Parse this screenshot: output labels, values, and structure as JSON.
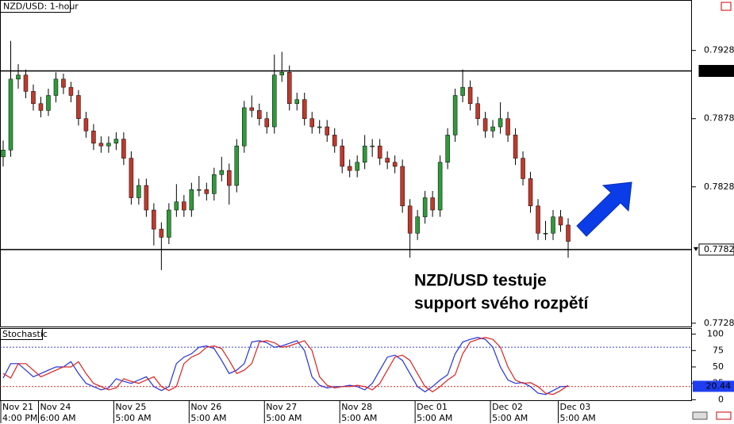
{
  "chart_data": {
    "type": "candlestick",
    "title": "NZD/USD: 1-hour",
    "categories": [
      "Nov 21",
      null,
      null,
      null,
      null,
      "Nov 24",
      null,
      null,
      null,
      null,
      null,
      null,
      null,
      null,
      null,
      "Nov 25",
      null,
      null,
      null,
      null,
      null,
      null,
      null,
      null,
      null,
      "Nov 26",
      null,
      null,
      null,
      null,
      null,
      null,
      null,
      null,
      null,
      "Nov 27",
      null,
      null,
      null,
      null,
      null,
      null,
      null,
      null,
      null,
      "Nov 28",
      null,
      null,
      null,
      null,
      null,
      null,
      null,
      null,
      null,
      "Dec 01",
      null,
      null,
      null,
      null,
      null,
      null,
      null,
      null,
      null,
      "Dec 02",
      null,
      null,
      null,
      null,
      null,
      null,
      null,
      null,
      "Dec 03",
      null
    ],
    "category_times": [
      "4:00 PM",
      null,
      null,
      null,
      null,
      "6:00 AM",
      null,
      null,
      null,
      null,
      null,
      null,
      null,
      null,
      null,
      "5:00 AM",
      null,
      null,
      null,
      null,
      null,
      null,
      null,
      null,
      null,
      "5:00 AM",
      null,
      null,
      null,
      null,
      null,
      null,
      null,
      null,
      null,
      "5:00 AM",
      null,
      null,
      null,
      null,
      null,
      null,
      null,
      null,
      null,
      "5:00 AM",
      null,
      null,
      null,
      null,
      null,
      null,
      null,
      null,
      null,
      "5:00 AM",
      null,
      null,
      null,
      null,
      null,
      null,
      null,
      null,
      null,
      "5:00 AM",
      null,
      null,
      null,
      null,
      null,
      null,
      null,
      null,
      "5:00 AM",
      null
    ],
    "ohlc": [
      [
        0.785,
        0.7862,
        0.7843,
        0.7855
      ],
      [
        0.7855,
        0.7935,
        0.785,
        0.7907
      ],
      [
        0.7907,
        0.7918,
        0.79,
        0.791
      ],
      [
        0.791,
        0.7914,
        0.7893,
        0.7898
      ],
      [
        0.7898,
        0.7903,
        0.7884,
        0.7889
      ],
      [
        0.7889,
        0.7894,
        0.7879,
        0.7884
      ],
      [
        0.7884,
        0.79,
        0.788,
        0.7895
      ],
      [
        0.7895,
        0.7912,
        0.789,
        0.7907
      ],
      [
        0.7907,
        0.7911,
        0.7896,
        0.7901
      ],
      [
        0.7901,
        0.7905,
        0.789,
        0.7895
      ],
      [
        0.7895,
        0.7899,
        0.7873,
        0.7878
      ],
      [
        0.7878,
        0.7883,
        0.7864,
        0.7869
      ],
      [
        0.7869,
        0.7874,
        0.7855,
        0.786
      ],
      [
        0.786,
        0.7865,
        0.7853,
        0.7858
      ],
      [
        0.7858,
        0.7865,
        0.7853,
        0.786
      ],
      [
        0.786,
        0.7868,
        0.7855,
        0.7863
      ],
      [
        0.7863,
        0.7868,
        0.7844,
        0.7849
      ],
      [
        0.7849,
        0.7854,
        0.7815,
        0.782
      ],
      [
        0.782,
        0.7834,
        0.7815,
        0.7829
      ],
      [
        0.7829,
        0.7834,
        0.7806,
        0.7811
      ],
      [
        0.7811,
        0.7816,
        0.7785,
        0.7797
      ],
      [
        0.7797,
        0.7802,
        0.7767,
        0.7791
      ],
      [
        0.7791,
        0.7816,
        0.7786,
        0.7811
      ],
      [
        0.7811,
        0.783,
        0.7806,
        0.7817
      ],
      [
        0.7817,
        0.7822,
        0.7806,
        0.7811
      ],
      [
        0.7811,
        0.7831,
        0.7806,
        0.7826
      ],
      [
        0.7826,
        0.7836,
        0.7821,
        0.7826
      ],
      [
        0.7826,
        0.7831,
        0.7818,
        0.7823
      ],
      [
        0.7823,
        0.7842,
        0.7818,
        0.7837
      ],
      [
        0.7837,
        0.785,
        0.7832,
        0.784
      ],
      [
        0.784,
        0.7845,
        0.7815,
        0.7829
      ],
      [
        0.7829,
        0.7863,
        0.7824,
        0.7858
      ],
      [
        0.7858,
        0.7891,
        0.7853,
        0.7886
      ],
      [
        0.7886,
        0.7895,
        0.7879,
        0.7884
      ],
      [
        0.7884,
        0.7889,
        0.7873,
        0.7878
      ],
      [
        0.7878,
        0.7883,
        0.7867,
        0.7872
      ],
      [
        0.7872,
        0.7925,
        0.7867,
        0.791
      ],
      [
        0.791,
        0.7927,
        0.7905,
        0.7912
      ],
      [
        0.7912,
        0.7917,
        0.7884,
        0.7889
      ],
      [
        0.7889,
        0.7897,
        0.7884,
        0.7892
      ],
      [
        0.7892,
        0.7897,
        0.7873,
        0.7878
      ],
      [
        0.7878,
        0.7883,
        0.7867,
        0.7872
      ],
      [
        0.7872,
        0.7877,
        0.7867,
        0.7872
      ],
      [
        0.7872,
        0.7877,
        0.7861,
        0.7866
      ],
      [
        0.7866,
        0.7871,
        0.7853,
        0.7858
      ],
      [
        0.7858,
        0.7863,
        0.7838,
        0.7843
      ],
      [
        0.7843,
        0.7848,
        0.7835,
        0.784
      ],
      [
        0.784,
        0.7851,
        0.7835,
        0.7846
      ],
      [
        0.7846,
        0.7866,
        0.7841,
        0.7858
      ],
      [
        0.7858,
        0.7863,
        0.785,
        0.7858
      ],
      [
        0.7858,
        0.7863,
        0.7844,
        0.7849
      ],
      [
        0.7849,
        0.7854,
        0.7841,
        0.7846
      ],
      [
        0.7846,
        0.7851,
        0.7838,
        0.7843
      ],
      [
        0.7843,
        0.7848,
        0.7809,
        0.7814
      ],
      [
        0.7814,
        0.7819,
        0.7776,
        0.7794
      ],
      [
        0.7794,
        0.7811,
        0.7789,
        0.7806
      ],
      [
        0.7806,
        0.7825,
        0.7801,
        0.782
      ],
      [
        0.782,
        0.7825,
        0.7806,
        0.7811
      ],
      [
        0.7811,
        0.7851,
        0.7806,
        0.7846
      ],
      [
        0.7846,
        0.7871,
        0.7841,
        0.7866
      ],
      [
        0.7866,
        0.79,
        0.7861,
        0.7895
      ],
      [
        0.7895,
        0.7914,
        0.789,
        0.7901
      ],
      [
        0.7901,
        0.7906,
        0.7884,
        0.7889
      ],
      [
        0.7889,
        0.7894,
        0.7873,
        0.7878
      ],
      [
        0.7878,
        0.7883,
        0.7864,
        0.7869
      ],
      [
        0.7869,
        0.7877,
        0.7864,
        0.7872
      ],
      [
        0.7872,
        0.789,
        0.7867,
        0.7878
      ],
      [
        0.7878,
        0.7883,
        0.7861,
        0.7866
      ],
      [
        0.7866,
        0.7871,
        0.7844,
        0.7849
      ],
      [
        0.7849,
        0.7854,
        0.7829,
        0.7834
      ],
      [
        0.7834,
        0.7839,
        0.7809,
        0.7814
      ],
      [
        0.7814,
        0.7819,
        0.7789,
        0.7794
      ],
      [
        0.7794,
        0.7803,
        0.7789,
        0.7794
      ],
      [
        0.7794,
        0.7811,
        0.7789,
        0.7806
      ],
      [
        0.7806,
        0.7811,
        0.7795,
        0.78
      ],
      [
        0.78,
        0.7805,
        0.7776,
        0.7788
      ]
    ],
    "up_color": "#2f9a3a",
    "down_color": "#c0392b",
    "ylim": [
      0.7725,
      0.7965
    ],
    "yticks": [
      0.7928,
      0.7878,
      0.7828,
      0.7728
    ],
    "resistance": 0.7913,
    "support": 0.7782,
    "annotation": [
      "NZD/USD testuje",
      "support svého rozpětí"
    ],
    "indicator": {
      "title": "Stochastic",
      "type": "line",
      "ylim": [
        -2,
        108
      ],
      "yticks": [
        100,
        75,
        50,
        25,
        0
      ],
      "levels": [
        80,
        20
      ],
      "level_colors": [
        "#3344cc",
        "#dd2222"
      ],
      "series": [
        {
          "color": "#2233dd",
          "values": [
            33,
            55,
            55,
            45,
            35,
            40,
            45,
            50,
            50,
            58,
            40,
            25,
            20,
            15,
            18,
            32,
            28,
            25,
            30,
            35,
            20,
            14,
            20,
            55,
            65,
            70,
            80,
            82,
            78,
            60,
            40,
            45,
            55,
            88,
            90,
            87,
            80,
            82,
            86,
            90,
            75,
            35,
            22,
            18,
            20,
            20,
            22,
            20,
            15,
            25,
            45,
            65,
            68,
            60,
            40,
            20,
            12,
            20,
            30,
            38,
            70,
            88,
            92,
            95,
            92,
            80,
            50,
            30,
            25,
            26,
            20,
            10,
            8,
            14,
            20,
            20.44
          ]
        },
        {
          "color": "#dd2222",
          "values": [
            40,
            33,
            55,
            55,
            45,
            35,
            40,
            45,
            50,
            50,
            58,
            40,
            25,
            20,
            15,
            18,
            32,
            28,
            25,
            30,
            35,
            20,
            14,
            20,
            55,
            65,
            70,
            80,
            82,
            78,
            60,
            40,
            45,
            55,
            88,
            90,
            87,
            80,
            82,
            86,
            90,
            75,
            35,
            22,
            18,
            20,
            20,
            22,
            20,
            15,
            25,
            45,
            65,
            68,
            60,
            40,
            20,
            12,
            20,
            30,
            38,
            70,
            88,
            92,
            95,
            92,
            80,
            50,
            30,
            25,
            26,
            20,
            10,
            8,
            14,
            22
          ]
        }
      ]
    }
  }
}
